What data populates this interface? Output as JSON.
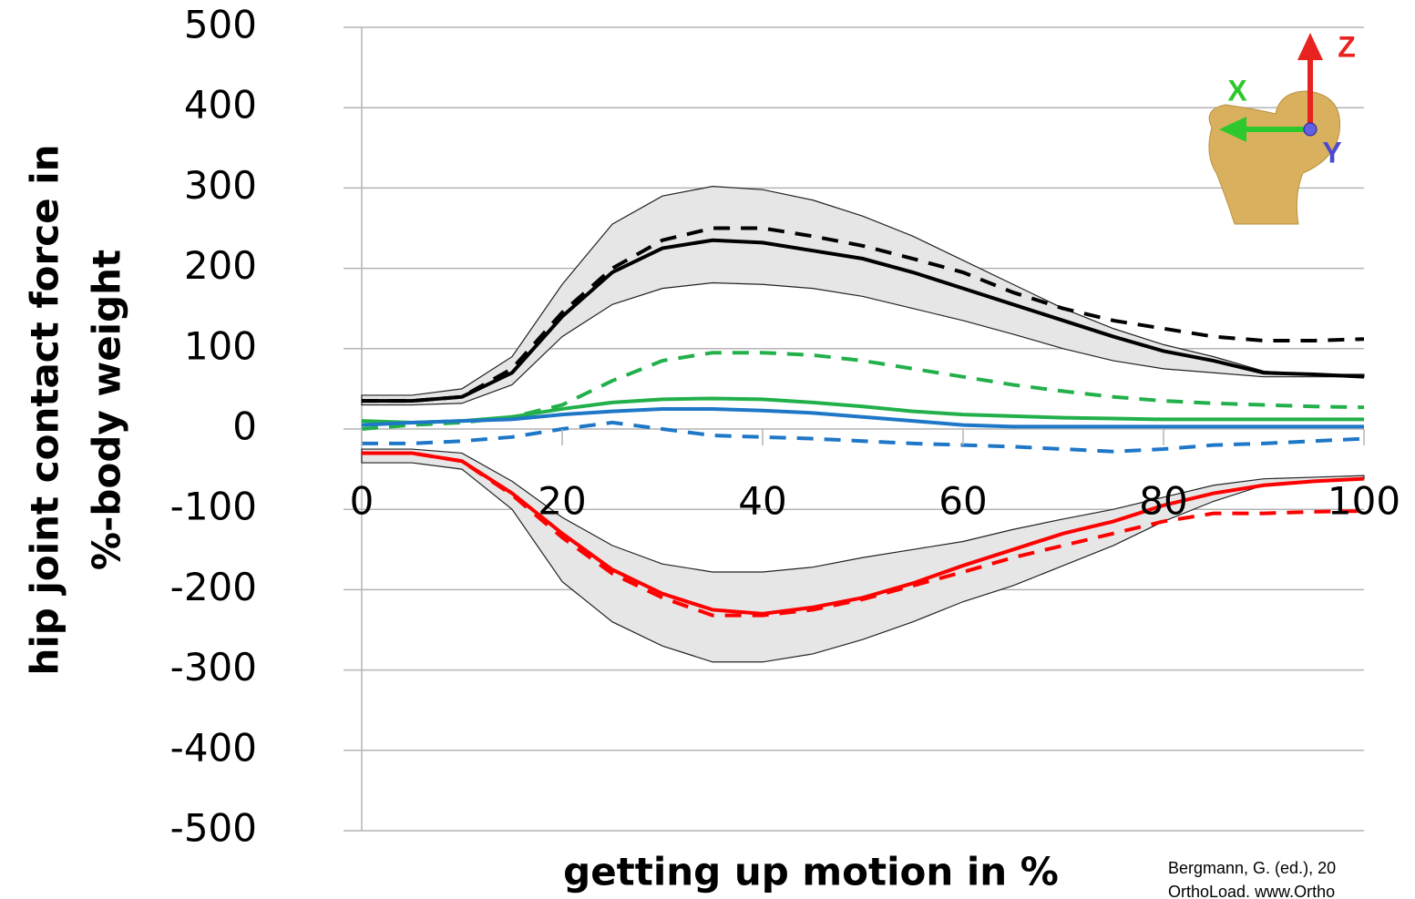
{
  "chart_data": {
    "type": "line",
    "x_label": "getting up motion in %",
    "y_label": [
      "hip joint contact force in",
      "%-body weight"
    ],
    "x": [
      0,
      5,
      10,
      15,
      20,
      25,
      30,
      35,
      40,
      45,
      50,
      55,
      60,
      65,
      70,
      75,
      80,
      85,
      90,
      95,
      100
    ],
    "xlim": [
      0,
      100
    ],
    "xticks": [
      0,
      20,
      40,
      60,
      80,
      100
    ],
    "ylim": [
      -500,
      500
    ],
    "yticks": [
      -500,
      -400,
      -300,
      -200,
      -100,
      0,
      100,
      200,
      300,
      400,
      500
    ],
    "grid": true,
    "bands": [
      {
        "color": "#e6e6e6",
        "upper": [
          42,
          42,
          50,
          90,
          180,
          255,
          290,
          302,
          298,
          285,
          265,
          240,
          210,
          180,
          150,
          125,
          105,
          90,
          72,
          68,
          68
        ],
        "lower": [
          30,
          30,
          32,
          55,
          115,
          155,
          175,
          182,
          180,
          175,
          165,
          150,
          135,
          118,
          100,
          85,
          75,
          70,
          65,
          65,
          65
        ]
      },
      {
        "color": "#e6e6e6",
        "upper": [
          -25,
          -25,
          -30,
          -65,
          -110,
          -145,
          -168,
          -178,
          -178,
          -172,
          -160,
          -150,
          -140,
          -125,
          -112,
          -100,
          -85,
          -70,
          -62,
          -60,
          -58
        ],
        "lower": [
          -42,
          -42,
          -50,
          -100,
          -190,
          -240,
          -270,
          -290,
          -290,
          -280,
          -262,
          -240,
          -215,
          -195,
          -170,
          -145,
          -115,
          -90,
          -70,
          -65,
          -62
        ]
      }
    ],
    "series": [
      {
        "color": "#000000",
        "dashed": true,
        "values": [
          35,
          35,
          40,
          75,
          145,
          200,
          235,
          250,
          250,
          240,
          228,
          212,
          195,
          170,
          150,
          135,
          125,
          115,
          110,
          110,
          112
        ]
      },
      {
        "color": "#000000",
        "dashed": false,
        "values": [
          35,
          35,
          40,
          70,
          140,
          195,
          225,
          235,
          232,
          222,
          212,
          195,
          175,
          155,
          135,
          115,
          97,
          85,
          70,
          68,
          65
        ]
      },
      {
        "color": "#22b04b",
        "dashed": true,
        "values": [
          0,
          5,
          8,
          15,
          30,
          60,
          85,
          95,
          95,
          92,
          85,
          75,
          65,
          55,
          47,
          40,
          35,
          32,
          30,
          28,
          27
        ]
      },
      {
        "color": "#22b04b",
        "dashed": false,
        "values": [
          10,
          8,
          10,
          15,
          25,
          33,
          37,
          38,
          37,
          33,
          28,
          22,
          18,
          16,
          14,
          13,
          12,
          12,
          12,
          12,
          12
        ]
      },
      {
        "color": "#1f77c8",
        "dashed": true,
        "values": [
          -18,
          -18,
          -15,
          -10,
          0,
          8,
          0,
          -8,
          -10,
          -12,
          -15,
          -18,
          -20,
          -22,
          -25,
          -28,
          -25,
          -20,
          -18,
          -15,
          -12
        ]
      },
      {
        "color": "#1f77c8",
        "dashed": false,
        "values": [
          5,
          8,
          10,
          12,
          18,
          22,
          25,
          25,
          23,
          20,
          15,
          10,
          5,
          3,
          3,
          3,
          3,
          3,
          3,
          3,
          3
        ]
      },
      {
        "color": "#ff0000",
        "dashed": true,
        "values": [
          -30,
          -30,
          -40,
          -82,
          -135,
          -180,
          -210,
          -232,
          -232,
          -225,
          -212,
          -195,
          -178,
          -160,
          -145,
          -130,
          -115,
          -105,
          -105,
          -103,
          -102
        ]
      },
      {
        "color": "#ff0000",
        "dashed": false,
        "values": [
          -30,
          -30,
          -40,
          -80,
          -130,
          -175,
          -205,
          -225,
          -230,
          -222,
          -210,
          -192,
          -170,
          -150,
          -130,
          -115,
          -95,
          -80,
          -70,
          -65,
          -62
        ]
      }
    ],
    "inset_labels": [
      "Z",
      "X",
      "Y"
    ],
    "source": [
      "Bergmann, G. (ed.), 20",
      "OrthoLoad. www.Ortho"
    ]
  }
}
